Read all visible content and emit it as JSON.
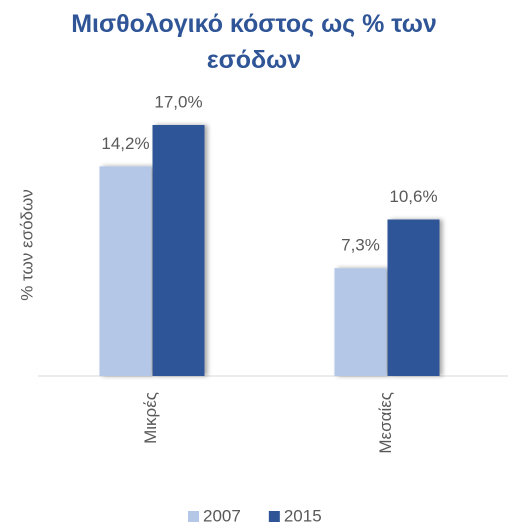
{
  "chart_data": {
    "type": "bar",
    "title": "Μισθολογικό κόστος ως % των εσόδων",
    "y_label": "% των εσόδων",
    "categories": [
      "Μικρές",
      "Μεσαίες"
    ],
    "series": [
      {
        "name": "2007",
        "color": "#b4c7e7",
        "values": [
          14.2,
          7.3
        ],
        "value_labels": [
          "14,2%",
          "7,3%"
        ]
      },
      {
        "name": "2015",
        "color": "#2f5597",
        "values": [
          17.0,
          10.6
        ],
        "value_labels": [
          "17,0%",
          "10,6%"
        ]
      }
    ],
    "legend": "bottom"
  }
}
